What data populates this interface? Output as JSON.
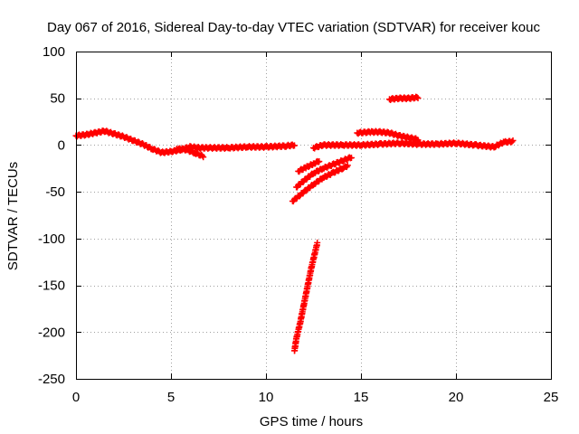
{
  "chart_data": {
    "type": "scatter",
    "title": "Day 067 of 2016, Sidereal Day-to-day VTEC variation (SDTVAR) for receiver kouc",
    "xlabel": "GPS time / hours",
    "ylabel": "SDTVAR / TECUs",
    "xlim": [
      0,
      25
    ],
    "ylim": [
      -250,
      100
    ],
    "xticks": [
      "0",
      "5",
      "10",
      "15",
      "20",
      "25"
    ],
    "yticks": [
      "100",
      "50",
      "0",
      "-50",
      "-100",
      "-150",
      "-200",
      "-250"
    ],
    "grid": true,
    "legend": "none",
    "marker": "plus",
    "series": [
      {
        "name": "main-track",
        "color": "#ff0000",
        "points": [
          [
            0,
            10
          ],
          [
            0.5,
            11
          ],
          [
            1,
            13
          ],
          [
            1.5,
            15
          ],
          [
            2,
            12
          ],
          [
            2.5,
            9
          ],
          [
            3,
            5
          ],
          [
            3.5,
            1
          ],
          [
            4,
            -4
          ],
          [
            4.5,
            -8
          ],
          [
            5,
            -7
          ],
          [
            5.5,
            -5
          ],
          [
            6,
            -2
          ],
          [
            6.5,
            -3
          ],
          [
            7,
            -3
          ],
          [
            8,
            -3
          ],
          [
            9,
            -2
          ],
          [
            10,
            -2
          ],
          [
            11,
            -1
          ],
          [
            11.5,
            0
          ]
        ]
      },
      {
        "name": "branch-near-6h",
        "color": "#ff0000",
        "points": [
          [
            5.3,
            -4
          ],
          [
            5.8,
            -5
          ],
          [
            6.2,
            -8
          ],
          [
            6.7,
            -12
          ]
        ]
      },
      {
        "name": "steep-descent",
        "color": "#ff0000",
        "points": [
          [
            11.5,
            -220
          ],
          [
            11.6,
            -207
          ],
          [
            11.8,
            -190
          ],
          [
            12,
            -170
          ],
          [
            12.2,
            -150
          ],
          [
            12.4,
            -130
          ],
          [
            12.7,
            -105
          ]
        ]
      },
      {
        "name": "lower-rising-arc",
        "color": "#ff0000",
        "points": [
          [
            11.4,
            -60
          ],
          [
            12,
            -50
          ],
          [
            12.5,
            -42
          ],
          [
            13,
            -35
          ],
          [
            13.5,
            -30
          ],
          [
            14,
            -25
          ],
          [
            14.3,
            -22
          ]
        ]
      },
      {
        "name": "middle-rising-arc",
        "color": "#ff0000",
        "points": [
          [
            11.6,
            -45
          ],
          [
            12,
            -38
          ],
          [
            12.5,
            -30
          ],
          [
            13,
            -25
          ],
          [
            13.5,
            -21
          ],
          [
            14,
            -17
          ],
          [
            14.5,
            -13
          ]
        ]
      },
      {
        "name": "upper-rising-arc",
        "color": "#ff0000",
        "points": [
          [
            11.7,
            -28
          ],
          [
            12.1,
            -24
          ],
          [
            12.5,
            -20
          ],
          [
            12.8,
            -17
          ]
        ]
      },
      {
        "name": "late-track",
        "color": "#ff0000",
        "points": [
          [
            12.5,
            -3
          ],
          [
            13,
            0
          ],
          [
            14,
            0
          ],
          [
            15,
            0
          ],
          [
            16,
            1
          ],
          [
            17,
            2
          ],
          [
            18,
            1
          ],
          [
            19,
            1
          ],
          [
            20,
            2
          ],
          [
            21,
            0
          ],
          [
            22,
            -2
          ],
          [
            22.5,
            3
          ],
          [
            23,
            4
          ]
        ]
      },
      {
        "name": "upper-late-arc",
        "color": "#ff0000",
        "points": [
          [
            14.8,
            13
          ],
          [
            15.5,
            14
          ],
          [
            16,
            14
          ],
          [
            16.5,
            13
          ],
          [
            17,
            10
          ],
          [
            17.5,
            8
          ],
          [
            18,
            6
          ]
        ]
      },
      {
        "name": "short-arc-50",
        "color": "#ff0000",
        "points": [
          [
            16.5,
            49
          ],
          [
            17,
            50
          ],
          [
            17.5,
            50
          ],
          [
            18,
            51
          ]
        ]
      }
    ]
  }
}
